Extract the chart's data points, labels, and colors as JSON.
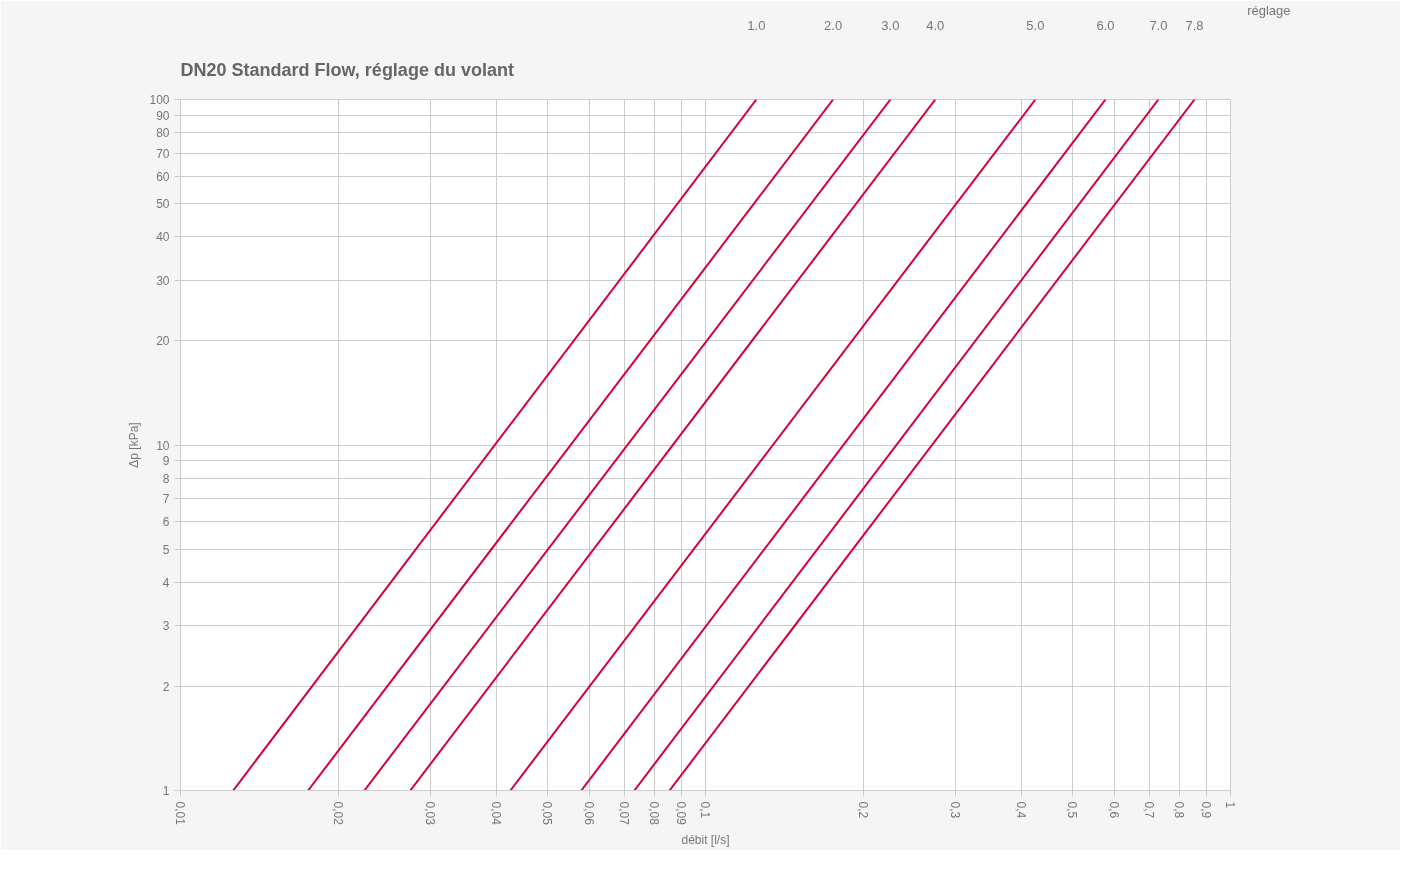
{
  "chart_data": {
    "type": "line",
    "title": "DN20 Standard Flow, réglage du volant",
    "xlabel": "débit [l/s]",
    "ylabel": "Δp [kPa]",
    "legend_title": "réglage",
    "log": "xy",
    "grid": true,
    "legend": false,
    "marker": "none",
    "line_style": "solid",
    "xlim": [
      0.01,
      1
    ],
    "ylim": [
      1,
      100
    ],
    "xticks": [
      {
        "value": 0.01,
        "label": "0,01"
      },
      {
        "value": 0.02,
        "label": "0,02"
      },
      {
        "value": 0.03,
        "label": "0,03"
      },
      {
        "value": 0.04,
        "label": "0,04"
      },
      {
        "value": 0.05,
        "label": "0,05"
      },
      {
        "value": 0.06,
        "label": "0,06"
      },
      {
        "value": 0.07,
        "label": "0,07"
      },
      {
        "value": 0.08,
        "label": "0,08"
      },
      {
        "value": 0.09,
        "label": "0,09"
      },
      {
        "value": 0.1,
        "label": "0,1"
      },
      {
        "value": 0.2,
        "label": "0,2"
      },
      {
        "value": 0.3,
        "label": "0,3"
      },
      {
        "value": 0.4,
        "label": "0,4"
      },
      {
        "value": 0.5,
        "label": "0,5"
      },
      {
        "value": 0.6,
        "label": "0,6"
      },
      {
        "value": 0.7,
        "label": "0,7"
      },
      {
        "value": 0.8,
        "label": "0,8"
      },
      {
        "value": 0.9,
        "label": "0,9"
      },
      1
    ],
    "yticks": [
      1,
      2,
      3,
      4,
      5,
      6,
      7,
      8,
      9,
      10,
      20,
      30,
      40,
      50,
      60,
      70,
      80,
      90,
      100
    ],
    "series": [
      {
        "name": "1.0",
        "color": "#d4003c",
        "x": [
          0.0126,
          0.125
        ],
        "values": [
          1,
          100
        ]
      },
      {
        "name": "2.0",
        "color": "#d4003c",
        "x": [
          0.0175,
          0.175
        ],
        "values": [
          1,
          100
        ]
      },
      {
        "name": "3.0",
        "color": "#d4003c",
        "x": [
          0.0224,
          0.225
        ],
        "values": [
          1,
          100
        ]
      },
      {
        "name": "4.0",
        "color": "#d4003c",
        "x": [
          0.0274,
          0.274
        ],
        "values": [
          1,
          100
        ]
      },
      {
        "name": "5.0",
        "color": "#d4003c",
        "x": [
          0.0425,
          0.425
        ],
        "values": [
          1,
          100
        ]
      },
      {
        "name": "6.0",
        "color": "#d4003c",
        "x": [
          0.058,
          0.578
        ],
        "values": [
          1,
          100
        ]
      },
      {
        "name": "7.0",
        "color": "#d4003c",
        "x": [
          0.0732,
          0.729
        ],
        "values": [
          1,
          100
        ]
      },
      {
        "name": "7.8",
        "color": "#d4003c",
        "x": [
          0.0854,
          0.854
        ],
        "values": [
          1,
          100
        ]
      }
    ]
  }
}
